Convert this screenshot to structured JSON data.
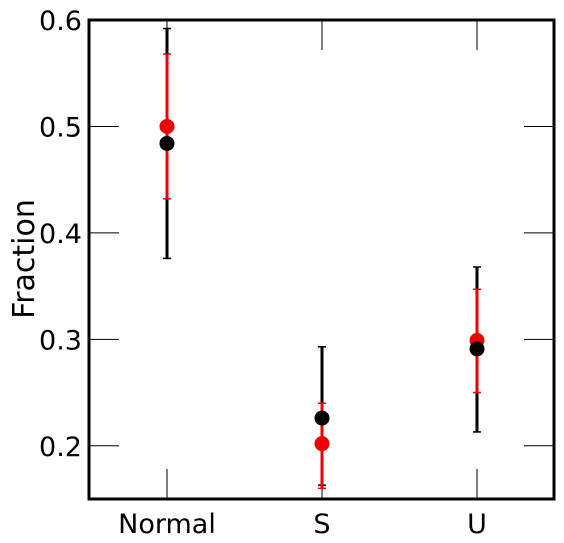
{
  "chart_data": {
    "type": "scatter",
    "title": "",
    "xlabel": "",
    "ylabel": "Fraction",
    "categories": [
      "Normal",
      "S",
      "U"
    ],
    "ylim": [
      0.15,
      0.6
    ],
    "yticks": [
      0.2,
      0.3,
      0.4,
      0.5,
      0.6
    ],
    "ytick_labels": [
      "0.2",
      "0.3",
      "0.4",
      "0.5",
      "0.6"
    ],
    "grid": false,
    "legend": "none",
    "series": [
      {
        "color": "#ee0000",
        "values": [
          0.5,
          0.202,
          0.299
        ],
        "err_low": [
          0.432,
          0.16,
          0.25
        ],
        "err_high": [
          0.568,
          0.24,
          0.347
        ]
      },
      {
        "color": "#000000",
        "values": [
          0.484,
          0.226,
          0.291
        ],
        "err_low": [
          0.376,
          0.163,
          0.213
        ],
        "err_high": [
          0.592,
          0.293,
          0.368
        ]
      }
    ]
  }
}
